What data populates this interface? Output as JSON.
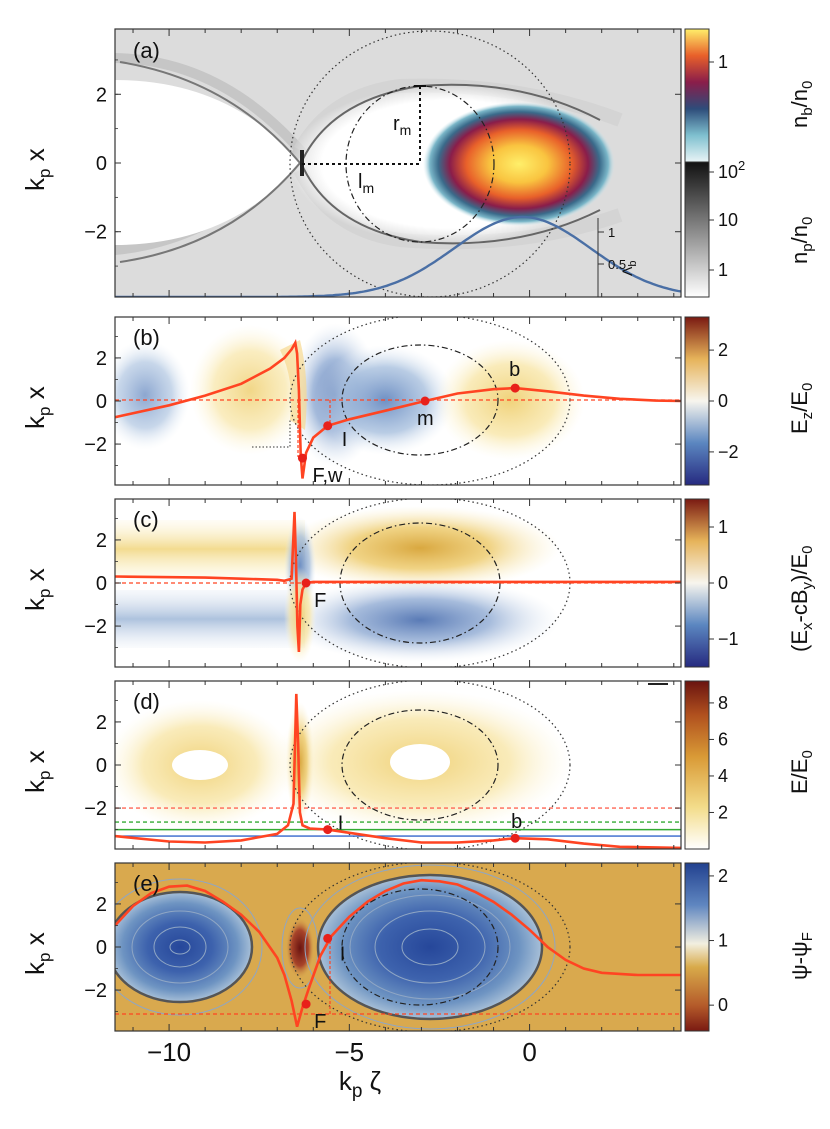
{
  "colors": {
    "line": "#ff4422",
    "marker": "#e8201a",
    "dens_line": "#4a6fa5",
    "neg": "#2b2f8a",
    "pos": "#7a1a12"
  },
  "chart_data": [
    {
      "type": "heatmap",
      "panel": "(a)",
      "ylabel_main": "k",
      "ylabel_sub": "p",
      "ylabel_tail": " x",
      "yticks": [
        "2",
        "0",
        "−2"
      ],
      "ytick_values": [
        2,
        0,
        -2
      ],
      "xlim": [
        -11.5,
        4.2
      ],
      "ylim": [
        -3.9,
        3.9
      ],
      "colorbars": [
        {
          "label_main": "n",
          "label_sub1": "b",
          "label_mid": "/n",
          "label_sub2": "0",
          "ticks": [
            "1"
          ],
          "scale": "log"
        },
        {
          "label_main": "n",
          "label_sub1": "p",
          "label_mid": "/n",
          "label_sub2": "0",
          "ticks": [
            "10",
            "10",
            "1"
          ],
          "tick_sups": [
            "2",
            "",
            ""
          ],
          "scale": "log"
        }
      ],
      "annotations": {
        "r": "r",
        "r_sub": "m",
        "l": "l",
        "l_sub": "m"
      },
      "inset_axis": {
        "ticks": [
          "1",
          "0.5"
        ],
        "tick_values": [
          1,
          0.5
        ],
        "label_main": "Λ",
        "label_sub": "b"
      },
      "beam_profile": {
        "center": -0.2,
        "sigma": 1.9,
        "peak": 1.0
      }
    },
    {
      "type": "heatmap",
      "panel": "(b)",
      "ylabel_main": "k",
      "ylabel_sub": "p",
      "ylabel_tail": " x",
      "yticks": [
        "2",
        "0",
        "−2"
      ],
      "ytick_values": [
        2,
        0,
        -2
      ],
      "colorbar": {
        "label_main": "E",
        "label_sub": "z",
        "label_tail": "/E",
        "label_sub2": "0",
        "ticks": [
          "2",
          "0",
          "−2"
        ],
        "tick_values": [
          2,
          0,
          -2
        ],
        "range": [
          -3.3,
          3.3
        ]
      },
      "points": [
        {
          "label": "b",
          "x": -0.4,
          "y": 0.6
        },
        {
          "label": "m",
          "x": -2.9,
          "y": 0.0
        },
        {
          "label": "I",
          "x": -5.6,
          "y": -1.15
        },
        {
          "label": "F,w",
          "x": -6.3,
          "y": -2.65
        }
      ],
      "line": {
        "x": [
          -11.5,
          -10,
          -9,
          -8,
          -7.2,
          -6.8,
          -6.6,
          -6.5,
          -6.45,
          -6.4,
          -6.35,
          -6.3,
          -6.2,
          -6,
          -5.6,
          -5,
          -4,
          -2.9,
          -2,
          -1,
          -0.4,
          0.5,
          1.5,
          2.5,
          3.5,
          4.2
        ],
        "y": [
          -0.75,
          -0.2,
          0.25,
          0.8,
          1.5,
          2.0,
          2.4,
          2.7,
          2.2,
          0.5,
          -2.5,
          -3.6,
          -2.4,
          -1.7,
          -1.15,
          -0.85,
          -0.45,
          0.0,
          0.35,
          0.55,
          0.6,
          0.45,
          0.25,
          0.1,
          0.02,
          0.0
        ]
      }
    },
    {
      "type": "heatmap",
      "panel": "(c)",
      "ylabel_main": "k",
      "ylabel_sub": "p",
      "ylabel_tail": " x",
      "yticks": [
        "2",
        "0",
        "−2"
      ],
      "ytick_values": [
        2,
        0,
        -2
      ],
      "colorbar": {
        "label": "(E",
        "label_sub": "x",
        "label_mid": "-cB",
        "label_sub2": "y",
        "label_tail": ")/E",
        "label_sub3": "0",
        "ticks": [
          "1",
          "0",
          "−1"
        ],
        "tick_values": [
          1,
          0,
          -1
        ],
        "range": [
          -1.5,
          1.5
        ]
      },
      "points": [
        {
          "label": "F",
          "x": -6.2,
          "y": 0.0
        }
      ],
      "line": {
        "x": [
          -11.5,
          -9,
          -8,
          -7,
          -6.8,
          -6.6,
          -6.52,
          -6.48,
          -6.44,
          -6.4,
          -6.36,
          -6.3,
          -6.2,
          -6,
          -5,
          -3,
          0,
          2,
          4.2
        ],
        "y": [
          0.3,
          0.25,
          0.2,
          0.15,
          0.1,
          0.2,
          3.3,
          1.0,
          -2.0,
          -3.2,
          -1.0,
          -0.3,
          0.0,
          0.05,
          0.05,
          0.05,
          0.05,
          0.05,
          0.05
        ]
      }
    },
    {
      "type": "heatmap",
      "panel": "(d)",
      "ylabel_main": "k",
      "ylabel_sub": "p",
      "ylabel_tail": " x",
      "yticks": [
        "2",
        "0",
        "−2"
      ],
      "ytick_values": [
        2,
        0,
        -2
      ],
      "colorbar": {
        "label": "E/E",
        "label_sub": "0",
        "ticks": [
          "8",
          "6",
          "4",
          "2"
        ],
        "tick_values": [
          8,
          6,
          4,
          2
        ],
        "range": [
          0,
          9.2
        ]
      },
      "points": [
        {
          "label": "I",
          "x": -5.6,
          "y": -3.0
        },
        {
          "label": "b",
          "x": -0.4,
          "y": -3.4
        }
      ],
      "hlines": [
        {
          "y": -2.0,
          "color": "#ff6655",
          "dash": true
        },
        {
          "y": -2.65,
          "color": "#33aa33",
          "dash": true
        },
        {
          "y": -3.0,
          "color": "#33aa33",
          "dash": false
        },
        {
          "y": -3.3,
          "color": "#3366cc",
          "dash": false
        }
      ],
      "line": {
        "x": [
          -11.5,
          -10,
          -9,
          -8,
          -7,
          -6.7,
          -6.55,
          -6.47,
          -6.42,
          -6.37,
          -6.3,
          -6.1,
          -5.6,
          -5,
          -4,
          -3,
          -2,
          -1,
          -0.4,
          0.5,
          1.5,
          2.5,
          4.2
        ],
        "y": [
          -3.3,
          -3.55,
          -3.6,
          -3.5,
          -3.2,
          -2.8,
          -1.8,
          3.3,
          1.0,
          -2.2,
          -2.8,
          -2.95,
          -3.0,
          -3.15,
          -3.4,
          -3.6,
          -3.6,
          -3.5,
          -3.4,
          -3.45,
          -3.65,
          -3.8,
          -3.85
        ]
      }
    },
    {
      "type": "heatmap",
      "panel": "(e)",
      "ylabel_main": "k",
      "ylabel_sub": "p",
      "ylabel_tail": " x",
      "yticks": [
        "2",
        "0",
        "−2"
      ],
      "ytick_values": [
        2,
        0,
        -2
      ],
      "xlabel_main": "k",
      "xlabel_sub": "p",
      "xlabel_tail": " ζ",
      "xticks": [
        "−10",
        "−5",
        "0"
      ],
      "xtick_values": [
        -10,
        -5,
        0
      ],
      "colorbar": {
        "label": "ψ-ψ",
        "label_sub": "F",
        "ticks": [
          "2",
          "1",
          "0"
        ],
        "tick_values": [
          2,
          1,
          0
        ],
        "range": [
          -0.4,
          2.2
        ]
      },
      "points": [
        {
          "label": "I",
          "x": -5.6,
          "y": 0.4
        },
        {
          "label": "F",
          "x": -6.2,
          "y": -2.65
        }
      ],
      "line": {
        "x": [
          -11.5,
          -11,
          -10.5,
          -10,
          -9.5,
          -9,
          -8.5,
          -8,
          -7.5,
          -7,
          -6.8,
          -6.6,
          -6.45,
          -6.3,
          -6.1,
          -5.8,
          -5.5,
          -5,
          -4.5,
          -4,
          -3.5,
          -3,
          -2.5,
          -2,
          -1.5,
          -1,
          -0.5,
          0,
          0.5,
          1,
          1.5,
          2,
          3,
          4.2
        ],
        "y": [
          1.0,
          1.9,
          2.5,
          2.8,
          2.85,
          2.6,
          2.1,
          1.5,
          0.7,
          -0.5,
          -1.3,
          -2.5,
          -3.7,
          -2.8,
          -1.8,
          -0.4,
          0.5,
          1.4,
          2.1,
          2.6,
          2.95,
          3.1,
          3.05,
          2.9,
          2.55,
          2.1,
          1.5,
          0.8,
          0.0,
          -0.6,
          -1.0,
          -1.2,
          -1.3,
          -1.3
        ]
      }
    }
  ]
}
